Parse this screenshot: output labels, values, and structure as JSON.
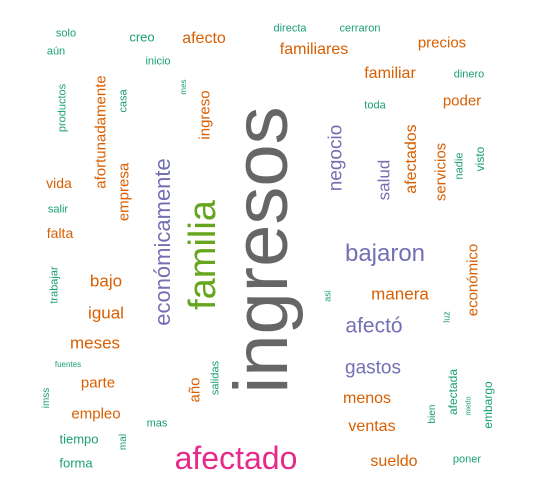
{
  "colors": {
    "orange": "#D95F02",
    "teal": "#1B9E77",
    "purple": "#7570B3",
    "pink": "#E7298A",
    "green": "#66A61E",
    "gray": "#666666"
  },
  "words": [
    {
      "text": "ingresos",
      "color": "gray",
      "orient": "v"
    },
    {
      "text": "familia",
      "color": "green",
      "orient": "v"
    },
    {
      "text": "afectado",
      "color": "pink",
      "orient": "h"
    },
    {
      "text": "económicamente",
      "color": "purple",
      "orient": "v"
    },
    {
      "text": "bajaron",
      "color": "purple",
      "orient": "h"
    },
    {
      "text": "afectó",
      "color": "purple",
      "orient": "h"
    },
    {
      "text": "gastos",
      "color": "purple",
      "orient": "h"
    },
    {
      "text": "negocio",
      "color": "purple",
      "orient": "v"
    },
    {
      "text": "salud",
      "color": "purple",
      "orient": "v"
    },
    {
      "text": "manera",
      "color": "orange",
      "orient": "h"
    },
    {
      "text": "menos",
      "color": "orange",
      "orient": "h"
    },
    {
      "text": "ventas",
      "color": "orange",
      "orient": "h"
    },
    {
      "text": "sueldo",
      "color": "orange",
      "orient": "h"
    },
    {
      "text": "afectados",
      "color": "orange",
      "orient": "v"
    },
    {
      "text": "servicios",
      "color": "orange",
      "orient": "v"
    },
    {
      "text": "económico",
      "color": "orange",
      "orient": "v"
    },
    {
      "text": "afortunadamente",
      "color": "orange",
      "orient": "v"
    },
    {
      "text": "empresa",
      "color": "orange",
      "orient": "v"
    },
    {
      "text": "ingreso",
      "color": "orange",
      "orient": "v"
    },
    {
      "text": "familiares",
      "color": "orange",
      "orient": "h"
    },
    {
      "text": "familiar",
      "color": "orange",
      "orient": "h"
    },
    {
      "text": "afecto",
      "color": "orange",
      "orient": "h"
    },
    {
      "text": "precios",
      "color": "orange",
      "orient": "h"
    },
    {
      "text": "poder",
      "color": "orange",
      "orient": "h"
    },
    {
      "text": "bajo",
      "color": "orange",
      "orient": "h"
    },
    {
      "text": "igual",
      "color": "orange",
      "orient": "h"
    },
    {
      "text": "meses",
      "color": "orange",
      "orient": "h"
    },
    {
      "text": "parte",
      "color": "orange",
      "orient": "h"
    },
    {
      "text": "empleo",
      "color": "orange",
      "orient": "h"
    },
    {
      "text": "vida",
      "color": "orange",
      "orient": "h"
    },
    {
      "text": "falta",
      "color": "orange",
      "orient": "h"
    },
    {
      "text": "año",
      "color": "orange",
      "orient": "v"
    },
    {
      "text": "solo",
      "color": "teal",
      "orient": "h"
    },
    {
      "text": "aún",
      "color": "teal",
      "orient": "h"
    },
    {
      "text": "creo",
      "color": "teal",
      "orient": "h"
    },
    {
      "text": "inicio",
      "color": "teal",
      "orient": "h"
    },
    {
      "text": "directa",
      "color": "teal",
      "orient": "h"
    },
    {
      "text": "cerraron",
      "color": "teal",
      "orient": "h"
    },
    {
      "text": "dinero",
      "color": "teal",
      "orient": "h"
    },
    {
      "text": "toda",
      "color": "teal",
      "orient": "h"
    },
    {
      "text": "mes",
      "color": "teal",
      "orient": "v"
    },
    {
      "text": "productos",
      "color": "teal",
      "orient": "v"
    },
    {
      "text": "casa",
      "color": "teal",
      "orient": "v"
    },
    {
      "text": "nadie",
      "color": "teal",
      "orient": "v"
    },
    {
      "text": "visto",
      "color": "teal",
      "orient": "v"
    },
    {
      "text": "salir",
      "color": "teal",
      "orient": "h"
    },
    {
      "text": "trabajar",
      "color": "teal",
      "orient": "v"
    },
    {
      "text": "asi",
      "color": "teal",
      "orient": "v"
    },
    {
      "text": "luz",
      "color": "teal",
      "orient": "v"
    },
    {
      "text": "fuentes",
      "color": "teal",
      "orient": "h"
    },
    {
      "text": "salidas",
      "color": "teal",
      "orient": "v"
    },
    {
      "text": "imss",
      "color": "teal",
      "orient": "v"
    },
    {
      "text": "tiempo",
      "color": "teal",
      "orient": "h"
    },
    {
      "text": "mal",
      "color": "teal",
      "orient": "v"
    },
    {
      "text": "mas",
      "color": "teal",
      "orient": "h"
    },
    {
      "text": "forma",
      "color": "teal",
      "orient": "h"
    },
    {
      "text": "bien",
      "color": "teal",
      "orient": "v"
    },
    {
      "text": "afectada",
      "color": "teal",
      "orient": "v"
    },
    {
      "text": "miedo",
      "color": "teal",
      "orient": "v"
    },
    {
      "text": "embargo",
      "color": "teal",
      "orient": "v"
    },
    {
      "text": "poner",
      "color": "teal",
      "orient": "h"
    }
  ]
}
